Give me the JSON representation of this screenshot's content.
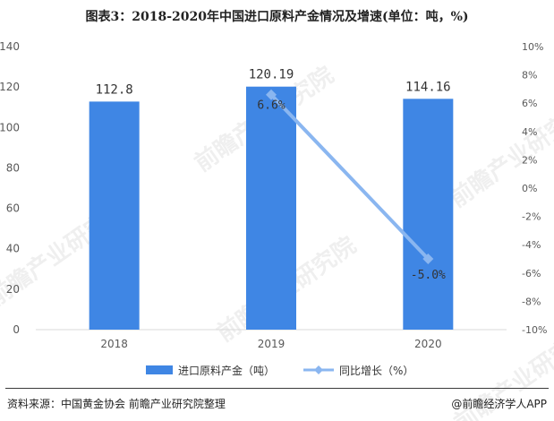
{
  "title": "图表3：2018-2020年中国进口原料产金情况及增速(单位：吨，%)",
  "watermark": "前瞻产业研究院",
  "source": "资料来源：中国黄金协会 前瞻产业研究院整理",
  "credit": "@前瞻经济学人APP",
  "colors": {
    "bar": "#3f86e4",
    "line": "#8ab6f0",
    "axis": "#d9d9d9",
    "text": "#595959"
  },
  "chart_data": {
    "type": "bar",
    "categories": [
      "2018",
      "2019",
      "2020"
    ],
    "series": [
      {
        "name": "进口原料产金（吨）",
        "type": "bar",
        "axis": "left",
        "values": [
          112.8,
          120.19,
          114.16
        ],
        "labels": [
          "112.8",
          "120.19",
          "114.16"
        ]
      },
      {
        "name": "同比增长（%）",
        "type": "line",
        "axis": "right",
        "values": [
          null,
          6.6,
          -5.0
        ],
        "labels": [
          "",
          "6.6%",
          "-5.0%"
        ]
      }
    ],
    "y_left": {
      "lim": [
        0,
        140
      ],
      "ticks": [
        0,
        20,
        40,
        60,
        80,
        100,
        120,
        140
      ]
    },
    "y_right": {
      "lim": [
        -10,
        10
      ],
      "ticks": [
        -10,
        -8,
        -6,
        -4,
        -2,
        0,
        2,
        4,
        6,
        8,
        10
      ],
      "tick_labels": [
        "-10%",
        "-8%",
        "-6%",
        "-4%",
        "-2%",
        "0%",
        "2%",
        "4%",
        "6%",
        "8%",
        "10%"
      ]
    },
    "legend_position": "bottom-center",
    "grid": false
  }
}
